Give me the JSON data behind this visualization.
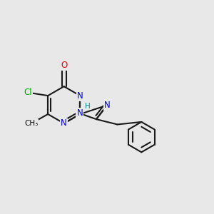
{
  "background_color": "#e8e8e8",
  "bond_color": "#1a1a1a",
  "atom_colors": {
    "N": "#0000ee",
    "O": "#ee0000",
    "Cl": "#00aa00",
    "H": "#008888",
    "C": "#000000",
    "Me": "#000000"
  },
  "figsize": [
    3.0,
    3.0
  ],
  "dpi": 100,
  "lw": 1.5,
  "fs": 8.5
}
